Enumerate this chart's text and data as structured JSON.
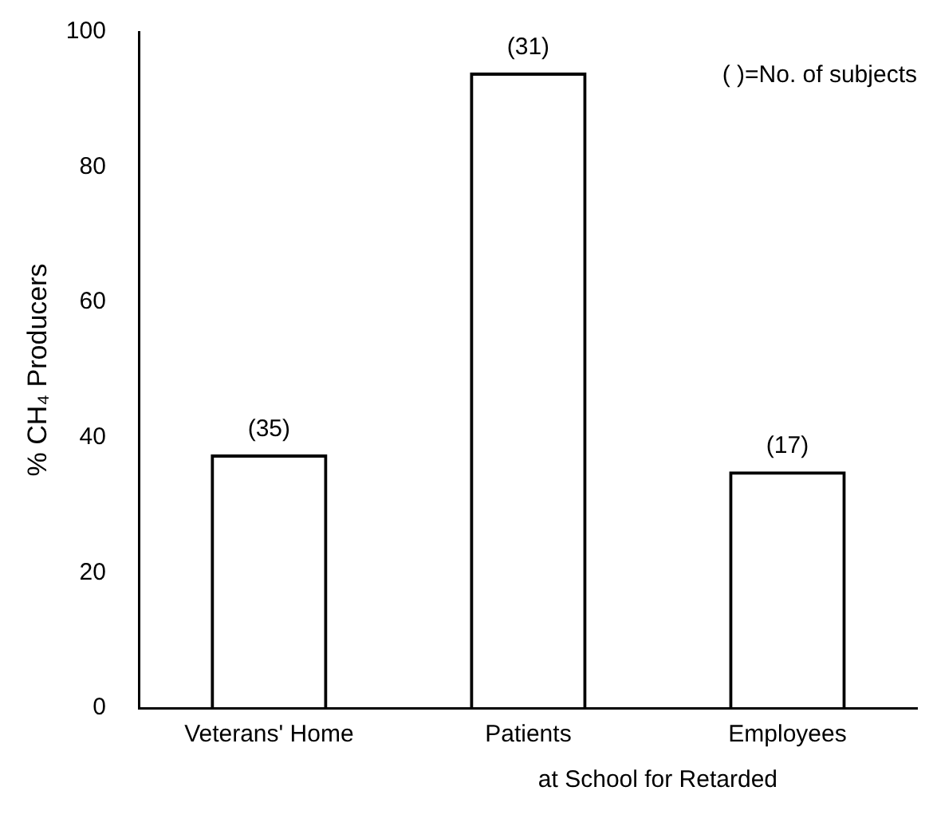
{
  "chart_data": {
    "type": "bar",
    "categories": [
      "Veterans' Home",
      "Patients",
      "Employees"
    ],
    "values": [
      37.5,
      94,
      35
    ],
    "color": "#000000",
    "ylabel": "% CH₄ Producers",
    "ylim": [
      0,
      100
    ],
    "yticks": [
      0,
      20,
      40,
      60,
      80,
      100
    ],
    "annotations": [
      "( )=No. of subjects",
      "at School for Retarded",
      {
        "text": "(35)",
        "x": "Veterans' Home",
        "y": 37.5
      },
      {
        "text": "(31)",
        "x": "Patients",
        "y": 94
      },
      {
        "text": "(17)",
        "x": "Employees",
        "y": 35
      }
    ],
    "grid": false,
    "legend": false
  }
}
